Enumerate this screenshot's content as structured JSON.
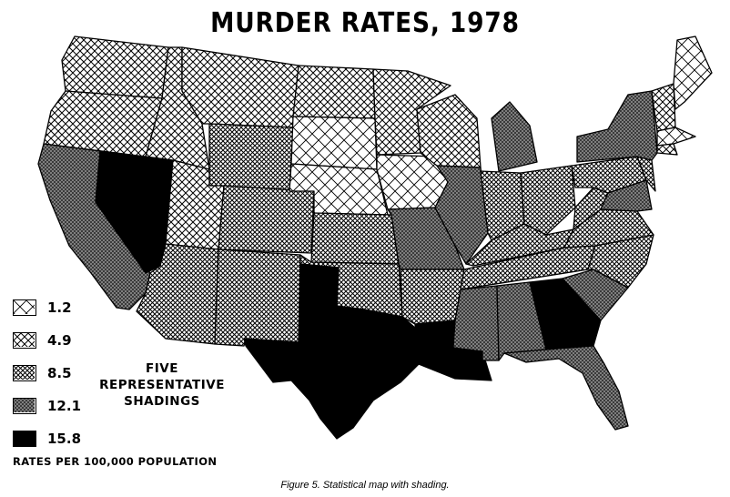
{
  "map": {
    "title": "MURDER RATES, 1978",
    "legend": {
      "items": [
        {
          "label": "1.2",
          "level": 1
        },
        {
          "label": "4.9",
          "level": 2
        },
        {
          "label": "8.5",
          "level": 3
        },
        {
          "label": "12.1",
          "level": 4
        },
        {
          "label": "15.8",
          "level": 5
        }
      ],
      "heading_line1": "FIVE REPRESENTATIVE",
      "heading_line2": "SHADINGS",
      "units_note": "RATES PER 100,000 POPULATION"
    },
    "caption": "Figure 5. Statistical map with shading."
  }
}
